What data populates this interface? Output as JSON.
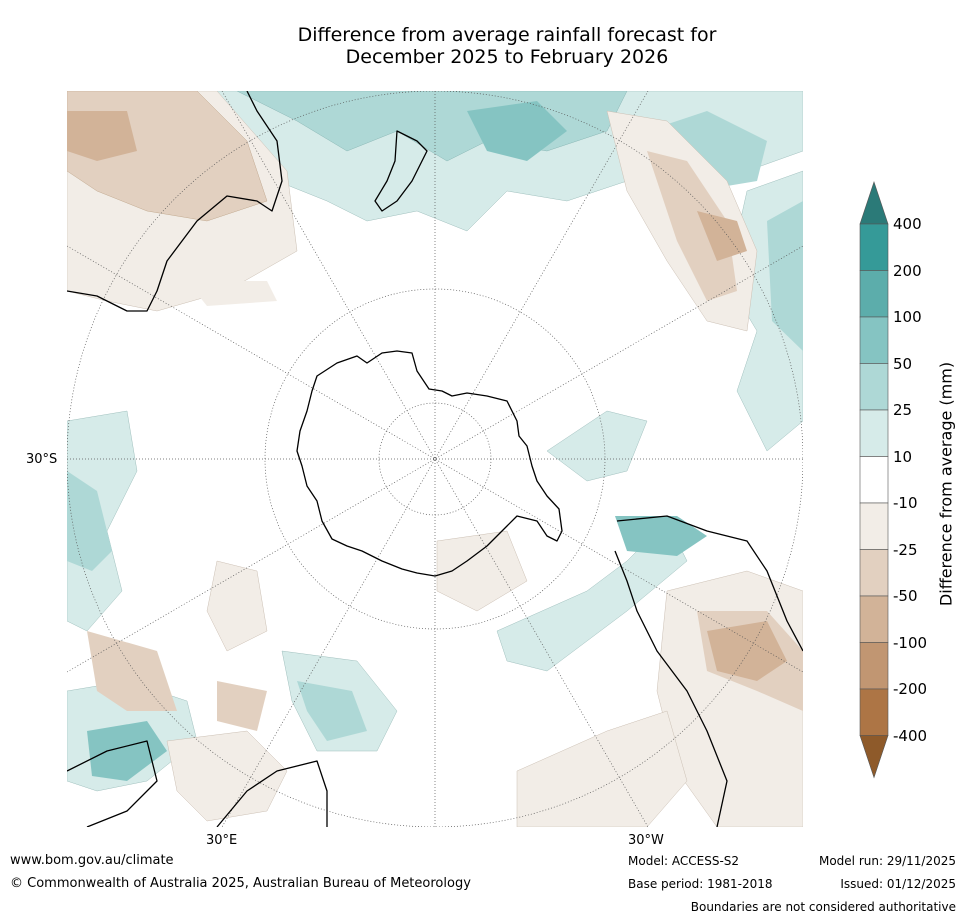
{
  "title": {
    "line1": "Difference from average rainfall forecast for",
    "line2": "December 2025 to February 2026"
  },
  "map": {
    "projection": "south-polar-stereographic",
    "latitude_label": "30°S",
    "longitude_labels": [
      "30°E",
      "30°W"
    ],
    "ocean_color": "#ffffff",
    "land_outline_color": "#000000"
  },
  "legend": {
    "title": "Difference from average (mm)",
    "tick_labels": [
      "400",
      "200",
      "100",
      "50",
      "25",
      "10",
      "-10",
      "-25",
      "-50",
      "-100",
      "-200",
      "-400"
    ],
    "bins": [
      {
        "range": "> 400",
        "color": "#2b7a78"
      },
      {
        "range": "200 to 400",
        "color": "#359a98"
      },
      {
        "range": "100 to 200",
        "color": "#5cadab"
      },
      {
        "range": "50 to 100",
        "color": "#85c4c2"
      },
      {
        "range": "25 to 50",
        "color": "#aed8d6"
      },
      {
        "range": "10 to 25",
        "color": "#d6ebe9"
      },
      {
        "range": "-10 to 10",
        "color": "#ffffff"
      },
      {
        "range": "-25 to -10",
        "color": "#f2ede7"
      },
      {
        "range": "-50 to -25",
        "color": "#e2d0c0"
      },
      {
        "range": "-100 to -50",
        "color": "#d2b398"
      },
      {
        "range": "-200 to -100",
        "color": "#c19672"
      },
      {
        "range": "-400 to -200",
        "color": "#ad7545"
      },
      {
        "range": "< -400",
        "color": "#8e5a2a"
      }
    ]
  },
  "footer": {
    "website": "www.bom.gov.au/climate",
    "copyright": "© Commonwealth of Australia 2025, Australian Bureau of Meteorology",
    "model": "Model: ACCESS-S2",
    "base_period": "Base period: 1981-2018",
    "model_run": "Model run: 29/11/2025",
    "issued": "Issued: 01/12/2025",
    "disclaimer": "Boundaries are not considered authoritative"
  }
}
